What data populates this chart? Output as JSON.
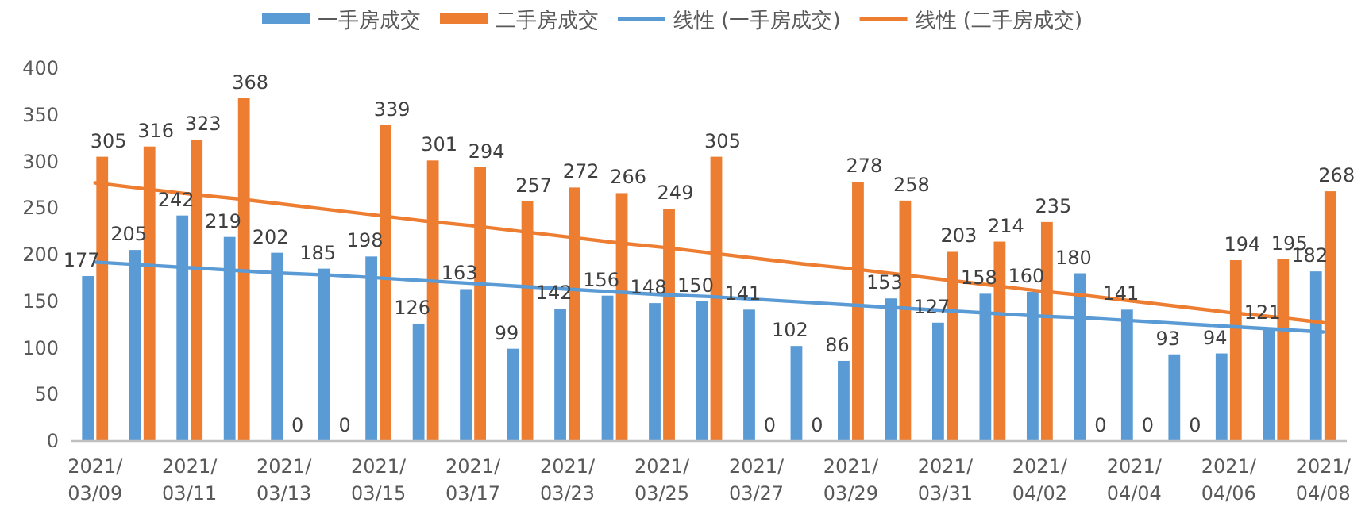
{
  "chart_data": {
    "type": "bar",
    "categories": [
      "2021/03/09",
      null,
      "2021/03/11",
      null,
      "2021/03/13",
      null,
      "2021/03/15",
      null,
      "2021/03/17",
      null,
      "2021/03/23",
      null,
      "2021/03/25",
      null,
      "2021/03/27",
      null,
      "2021/03/29",
      null,
      "2021/03/31",
      null,
      "2021/04/02",
      null,
      "2021/04/04",
      null,
      "2021/04/06",
      null,
      "2021/04/08"
    ],
    "series": [
      {
        "name": "一手房成交",
        "color": "#5b9bd5",
        "values": [
          177,
          205,
          242,
          219,
          202,
          185,
          198,
          126,
          163,
          99,
          142,
          156,
          148,
          150,
          141,
          102,
          86,
          153,
          127,
          158,
          160,
          180,
          141,
          93,
          94,
          121,
          182
        ],
        "value_labels": [
          "177",
          "205",
          "242",
          "219",
          "202",
          "185",
          "198",
          "126",
          "163",
          "99",
          "142",
          "156",
          "148",
          "150",
          "141",
          "102",
          "86",
          "153",
          "127",
          "158",
          "160",
          "180",
          "141",
          "93",
          "94",
          "121",
          "182"
        ]
      },
      {
        "name": "二手房成交",
        "color": "#ed7d31",
        "values": [
          305,
          316,
          323,
          368,
          0,
          0,
          339,
          301,
          294,
          257,
          272,
          266,
          249,
          305,
          0,
          0,
          278,
          258,
          203,
          214,
          235,
          0,
          0,
          0,
          194,
          195,
          268
        ],
        "value_labels": [
          "305",
          "316",
          "323",
          "368",
          "0",
          "0",
          "339",
          "301",
          "294",
          "257",
          "272",
          "266",
          "249",
          "305",
          "0",
          "0",
          "278",
          "258",
          "203",
          "214",
          "235",
          "0",
          "0",
          "0",
          "194",
          "195",
          "268"
        ]
      },
      {
        "name": "线性 (一手房成交)",
        "type": "line",
        "color": "#5b9bd5",
        "values": [
          192,
          189,
          186,
          183,
          180,
          178,
          175,
          172,
          169,
          166,
          163,
          160,
          157,
          155,
          152,
          149,
          146,
          143,
          140,
          137,
          134,
          132,
          129,
          126,
          123,
          120,
          117
        ]
      },
      {
        "name": "线性 (二手房成交)",
        "type": "line",
        "color": "#ed7d31",
        "values": [
          277,
          271,
          265,
          260,
          254,
          248,
          242,
          236,
          231,
          225,
          219,
          213,
          208,
          202,
          196,
          190,
          185,
          179,
          173,
          167,
          161,
          156,
          150,
          144,
          138,
          133,
          127
        ]
      }
    ],
    "ylim": [
      0,
      400
    ],
    "yticks": [
      0,
      50,
      100,
      150,
      200,
      250,
      300,
      350,
      400
    ],
    "legend": "top",
    "grid": false
  }
}
